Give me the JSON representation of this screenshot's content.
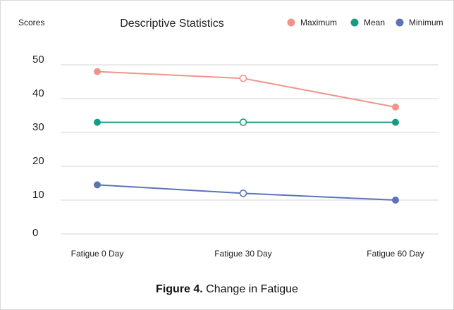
{
  "chart_data": {
    "type": "line",
    "title": "Descriptive Statistics",
    "ylabel": "Scores",
    "xlabel": "",
    "categories": [
      "Fatigue 0 Day",
      "Fatigue 30 Day",
      "Fatigue 60 Day"
    ],
    "yticks": [
      "0",
      "10",
      "20",
      "30",
      "40",
      "50"
    ],
    "ylim": [
      0,
      50
    ],
    "grid": "horizontal",
    "legend_position": "top-right",
    "series": [
      {
        "name": "Maximum",
        "color": "#f0948a",
        "values": [
          48,
          46,
          37.5
        ],
        "markers": [
          "filled",
          "hollow",
          "filled"
        ]
      },
      {
        "name": "Mean",
        "color": "#1a9a82",
        "values": [
          33,
          33,
          33
        ],
        "markers": [
          "filled",
          "hollow",
          "filled"
        ]
      },
      {
        "name": "Minimum",
        "color": "#5b74b8",
        "values": [
          14.5,
          12,
          10
        ],
        "markers": [
          "filled",
          "hollow",
          "filled"
        ]
      }
    ]
  },
  "caption": {
    "bold": "Figure 4.",
    "text": " Change in Fatigue"
  }
}
